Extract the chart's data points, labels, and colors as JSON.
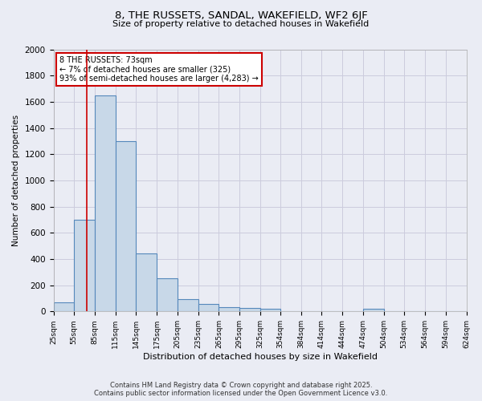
{
  "title1": "8, THE RUSSETS, SANDAL, WAKEFIELD, WF2 6JF",
  "title2": "Size of property relative to detached houses in Wakefield",
  "xlabel": "Distribution of detached houses by size in Wakefield",
  "ylabel": "Number of detached properties",
  "bin_edges": [
    25,
    55,
    85,
    115,
    145,
    175,
    205,
    235,
    265,
    295,
    325,
    354,
    384,
    414,
    444,
    474,
    504,
    534,
    564,
    594,
    624
  ],
  "bar_heights": [
    70,
    700,
    1650,
    1300,
    440,
    250,
    95,
    55,
    30,
    25,
    20,
    0,
    0,
    0,
    0,
    20,
    0,
    0,
    0,
    0
  ],
  "bar_color": "#c8d8e8",
  "bar_edge_color": "#5588bb",
  "bar_edge_width": 0.8,
  "red_line_x": 73,
  "red_line_color": "#cc0000",
  "annotation_line1": "8 THE RUSSETS: 73sqm",
  "annotation_line2": "← 7% of detached houses are smaller (325)",
  "annotation_line3": "93% of semi-detached houses are larger (4,283) →",
  "annotation_box_color": "#ffffff",
  "annotation_box_edge_color": "#cc0000",
  "ylim": [
    0,
    2000
  ],
  "yticks": [
    0,
    200,
    400,
    600,
    800,
    1000,
    1200,
    1400,
    1600,
    1800,
    2000
  ],
  "grid_color": "#ccccdd",
  "background_color": "#eaecf4",
  "footer1": "Contains HM Land Registry data © Crown copyright and database right 2025.",
  "footer2": "Contains public sector information licensed under the Open Government Licence v3.0.",
  "tick_labels": [
    "25sqm",
    "55sqm",
    "85sqm",
    "115sqm",
    "145sqm",
    "175sqm",
    "205sqm",
    "235sqm",
    "265sqm",
    "295sqm",
    "325sqm",
    "354sqm",
    "384sqm",
    "414sqm",
    "444sqm",
    "474sqm",
    "504sqm",
    "534sqm",
    "564sqm",
    "594sqm",
    "624sqm"
  ]
}
